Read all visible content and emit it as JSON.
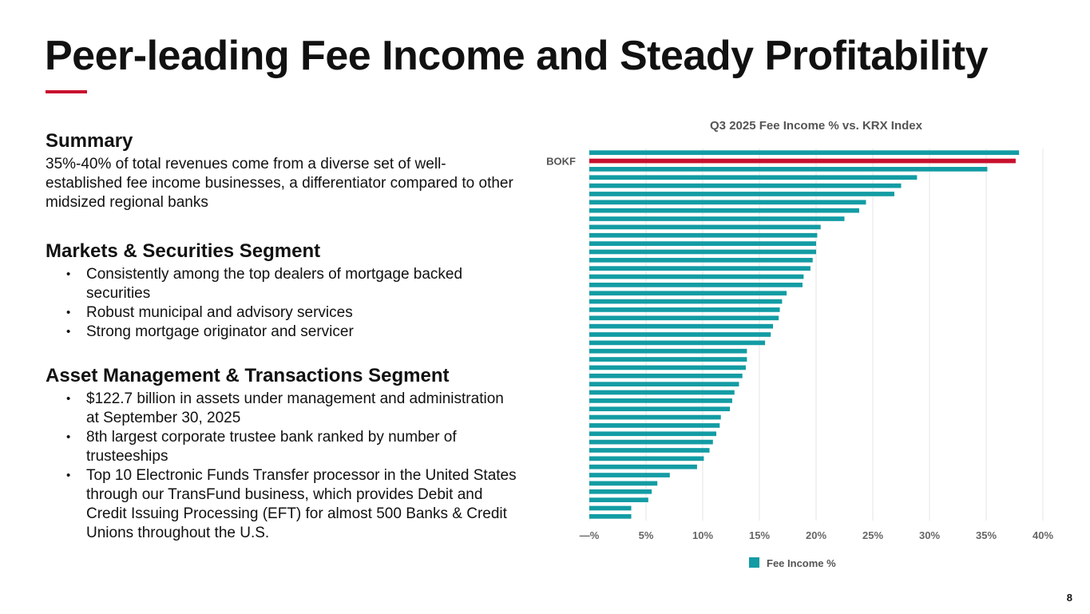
{
  "title": "Peer-leading Fee Income and Steady Profitability",
  "colors": {
    "accent": "#c8102e",
    "bar": "#139ca4",
    "highlight": "#c8102e",
    "grid": "#e6e6e6"
  },
  "summary": {
    "heading": "Summary",
    "text": "35%-40% of total revenues come from a diverse set of well-established fee income businesses, a differentiator compared to other midsized regional banks"
  },
  "markets": {
    "heading": "Markets & Securities Segment",
    "bullets": [
      "Consistently among the top dealers of mortgage backed securities",
      "Robust municipal and advisory services",
      "Strong mortgage originator and servicer"
    ]
  },
  "asset": {
    "heading": "Asset Management & Transactions Segment",
    "bullets": [
      "$122.7 billion in assets under management and administration at September 30, 2025",
      "8th largest corporate trustee bank ranked by number of trusteeships",
      "Top 10 Electronic Funds Transfer processor in the United States through our TransFund business, which provides Debit and Credit Issuing Processing (EFT) for almost 500 Banks & Credit Unions throughout the U.S."
    ]
  },
  "bullet_glyph": "•",
  "page_number": "8",
  "chart_data": {
    "type": "bar",
    "orientation": "horizontal",
    "title": "Q3 2025 Fee Income % vs. KRX Index",
    "xlim": [
      0,
      40
    ],
    "xticks": [
      0,
      5,
      10,
      15,
      20,
      25,
      30,
      35,
      40
    ],
    "xtick_labels": [
      "—%",
      "5%",
      "10%",
      "15%",
      "20%",
      "25%",
      "30%",
      "35%",
      "40%"
    ],
    "highlight_label": "BOKF",
    "highlight_index": 1,
    "legend": [
      {
        "label": "Fee Income %",
        "color": "#139ca4"
      }
    ],
    "legend_position": "bottom",
    "series": [
      {
        "name": "Fee Income %",
        "values": [
          37.9,
          37.6,
          35.1,
          28.9,
          27.5,
          26.9,
          24.4,
          23.8,
          22.5,
          20.4,
          20.1,
          20.0,
          20.0,
          19.7,
          19.5,
          18.9,
          18.8,
          17.4,
          17.0,
          16.8,
          16.7,
          16.2,
          16.0,
          15.5,
          13.9,
          13.9,
          13.8,
          13.5,
          13.2,
          12.8,
          12.6,
          12.4,
          11.6,
          11.5,
          11.2,
          10.9,
          10.6,
          10.1,
          9.5,
          7.1,
          6.0,
          5.5,
          5.2,
          3.7,
          3.7
        ]
      }
    ]
  }
}
